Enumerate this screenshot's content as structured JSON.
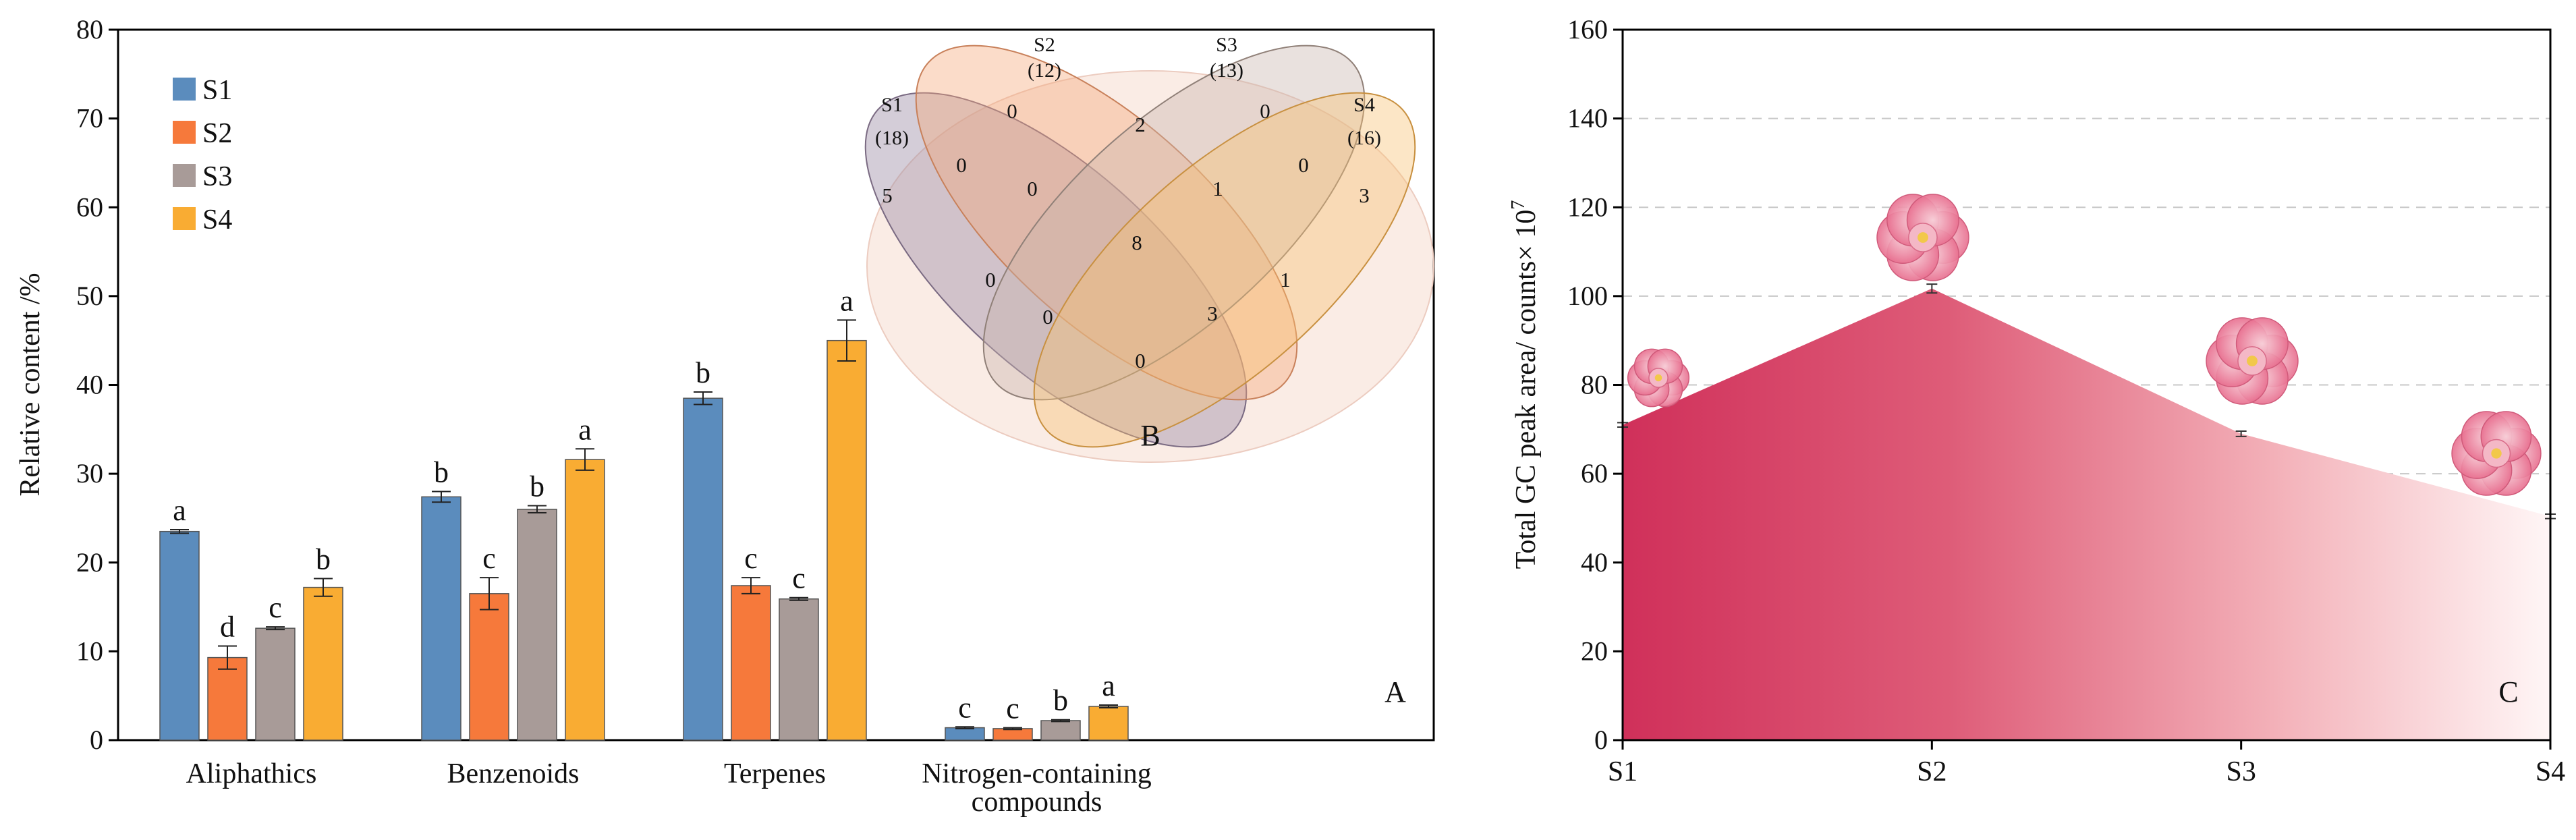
{
  "chart_data": [
    {
      "panel": "A",
      "type": "bar",
      "panel_label": "A",
      "ylabel": "Relative content /%",
      "ylim": [
        0,
        80
      ],
      "yticks": [
        0,
        10,
        20,
        30,
        40,
        50,
        60,
        70,
        80
      ],
      "categories": [
        "Aliphathics",
        "Benzenoids",
        "Terpenes",
        "Nitrogen-containing compounds"
      ],
      "category_lines": [
        [
          "Aliphathics"
        ],
        [
          "Benzenoids"
        ],
        [
          "Terpenes"
        ],
        [
          "Nitrogen-containing",
          "compounds"
        ]
      ],
      "series": [
        {
          "name": "S1",
          "color": "#5b8cbd",
          "values": [
            23.5,
            27.4,
            38.5,
            1.4
          ],
          "errors": [
            0.2,
            0.6,
            0.7,
            0.1
          ],
          "letters": [
            "a",
            "b",
            "b",
            "c"
          ]
        },
        {
          "name": "S2",
          "color": "#f6793b",
          "values": [
            9.3,
            16.5,
            17.4,
            1.3
          ],
          "errors": [
            1.3,
            1.8,
            0.9,
            0.1
          ],
          "letters": [
            "d",
            "c",
            "c",
            "c"
          ]
        },
        {
          "name": "S3",
          "color": "#a89b98",
          "values": [
            12.6,
            26.0,
            15.9,
            2.2
          ],
          "errors": [
            0.15,
            0.4,
            0.15,
            0.1
          ],
          "letters": [
            "c",
            "b",
            "c",
            "b"
          ]
        },
        {
          "name": "S4",
          "color": "#f9ac33",
          "values": [
            17.2,
            31.6,
            45.0,
            3.8
          ],
          "errors": [
            1.0,
            1.2,
            2.3,
            0.15
          ],
          "letters": [
            "b",
            "a",
            "a",
            "a"
          ]
        }
      ]
    },
    {
      "panel": "B",
      "type": "venn",
      "panel_label": "B",
      "sets": [
        {
          "name": "S1",
          "size": "(18)",
          "color": "#a090a8"
        },
        {
          "name": "S2",
          "size": "(12)",
          "color": "#f6a878"
        },
        {
          "name": "S3",
          "size": "(13)",
          "color": "#c8b4ac"
        },
        {
          "name": "S4",
          "size": "(16)",
          "color": "#f8c070"
        }
      ],
      "regions": [
        "5",
        "0",
        "2",
        "0",
        "0",
        "3",
        "0",
        "1",
        "0",
        "8",
        "0",
        "1",
        "0",
        "3",
        "0"
      ]
    },
    {
      "panel": "C",
      "type": "area",
      "panel_label": "C",
      "ylabel": "Total GC peak area/ counts× 10",
      "ylabel_exp": "7",
      "ylim": [
        0,
        160
      ],
      "yticks": [
        0,
        20,
        40,
        60,
        80,
        100,
        120,
        140,
        160
      ],
      "x": [
        "S1",
        "S2",
        "S3",
        "S4"
      ],
      "values": [
        71.0,
        101.7,
        69.0,
        50.4
      ],
      "errors": [
        0.5,
        1.0,
        0.6,
        0.5
      ],
      "grid": true,
      "gradient": [
        "#d0305a",
        "#fff5f5"
      ],
      "flower_icons": [
        "S1",
        "S2",
        "S3",
        "S4"
      ]
    }
  ]
}
